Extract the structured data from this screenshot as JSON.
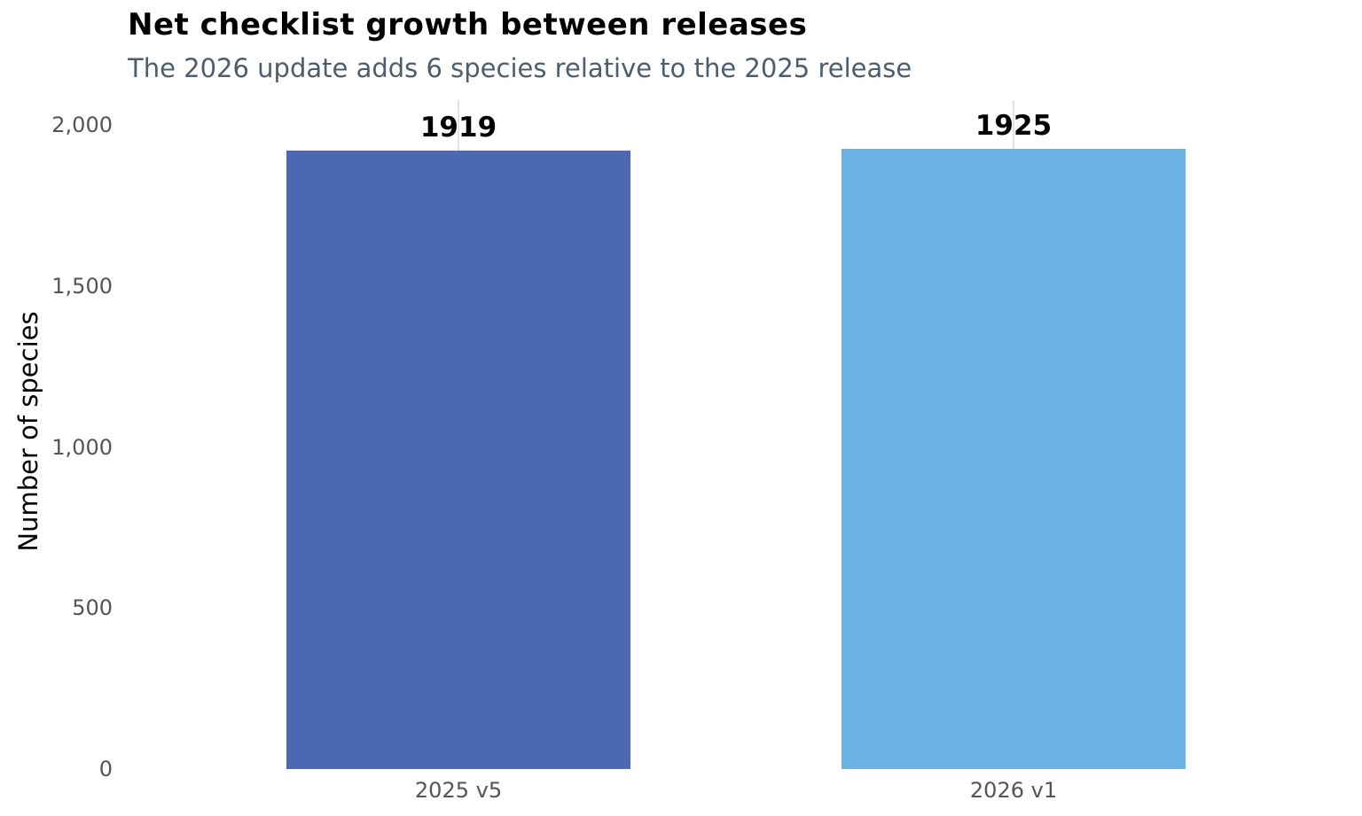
{
  "chart_data": {
    "type": "bar",
    "title": "Net checklist growth between releases",
    "subtitle": "The 2026 update adds 6 species relative to the 2025 release",
    "categories": [
      "2025 v5",
      "2026 v1"
    ],
    "values": [
      1919,
      1925
    ],
    "value_labels": [
      "1919",
      "1925"
    ],
    "bar_colors": [
      "#4b68b0",
      "#6ab1e4"
    ],
    "xlabel": "",
    "ylabel": "Number of species",
    "ylim": [
      0,
      2000
    ],
    "yticks": [
      0,
      500,
      1000,
      1500,
      2000
    ],
    "ytick_labels": [
      "0",
      "500",
      "1,000",
      "1,500",
      "2,000"
    ],
    "grid": "vertical line at each category center only",
    "legend_position": "none"
  },
  "colors": {
    "title": "#000000",
    "subtitle": "#4d5d6e",
    "axis_text": "#555555",
    "value_label": "#000000",
    "gridline": "#e2e2e2",
    "bar_2025_v5": "#4b68b0",
    "bar_2026_v1": "#6ab1e4",
    "background": "#ffffff"
  }
}
